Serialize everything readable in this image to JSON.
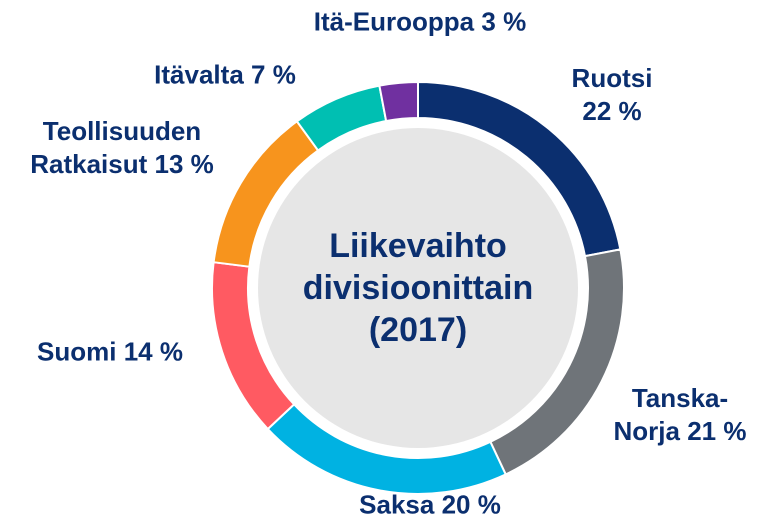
{
  "chart_data": {
    "type": "donut",
    "center_text": "Liikevaihto divisioonittain (2017)",
    "categories": [
      "Ruotsi",
      "Tanska-Norja",
      "Saksa",
      "Suomi",
      "Teollisuuden Ratkaisut",
      "Itävalta",
      "Itä-Eurooppa"
    ],
    "values": [
      22,
      21,
      20,
      14,
      13,
      7,
      3
    ],
    "value_labels": [
      "22 %",
      "21 %",
      "20 %",
      "14 %",
      "13 %",
      "7 %",
      "3 %"
    ],
    "colors": [
      "#0b2f6f",
      "#6f7479",
      "#00b2e2",
      "#ff5a62",
      "#f7941d",
      "#00bfb2",
      "#7030a0"
    ]
  }
}
